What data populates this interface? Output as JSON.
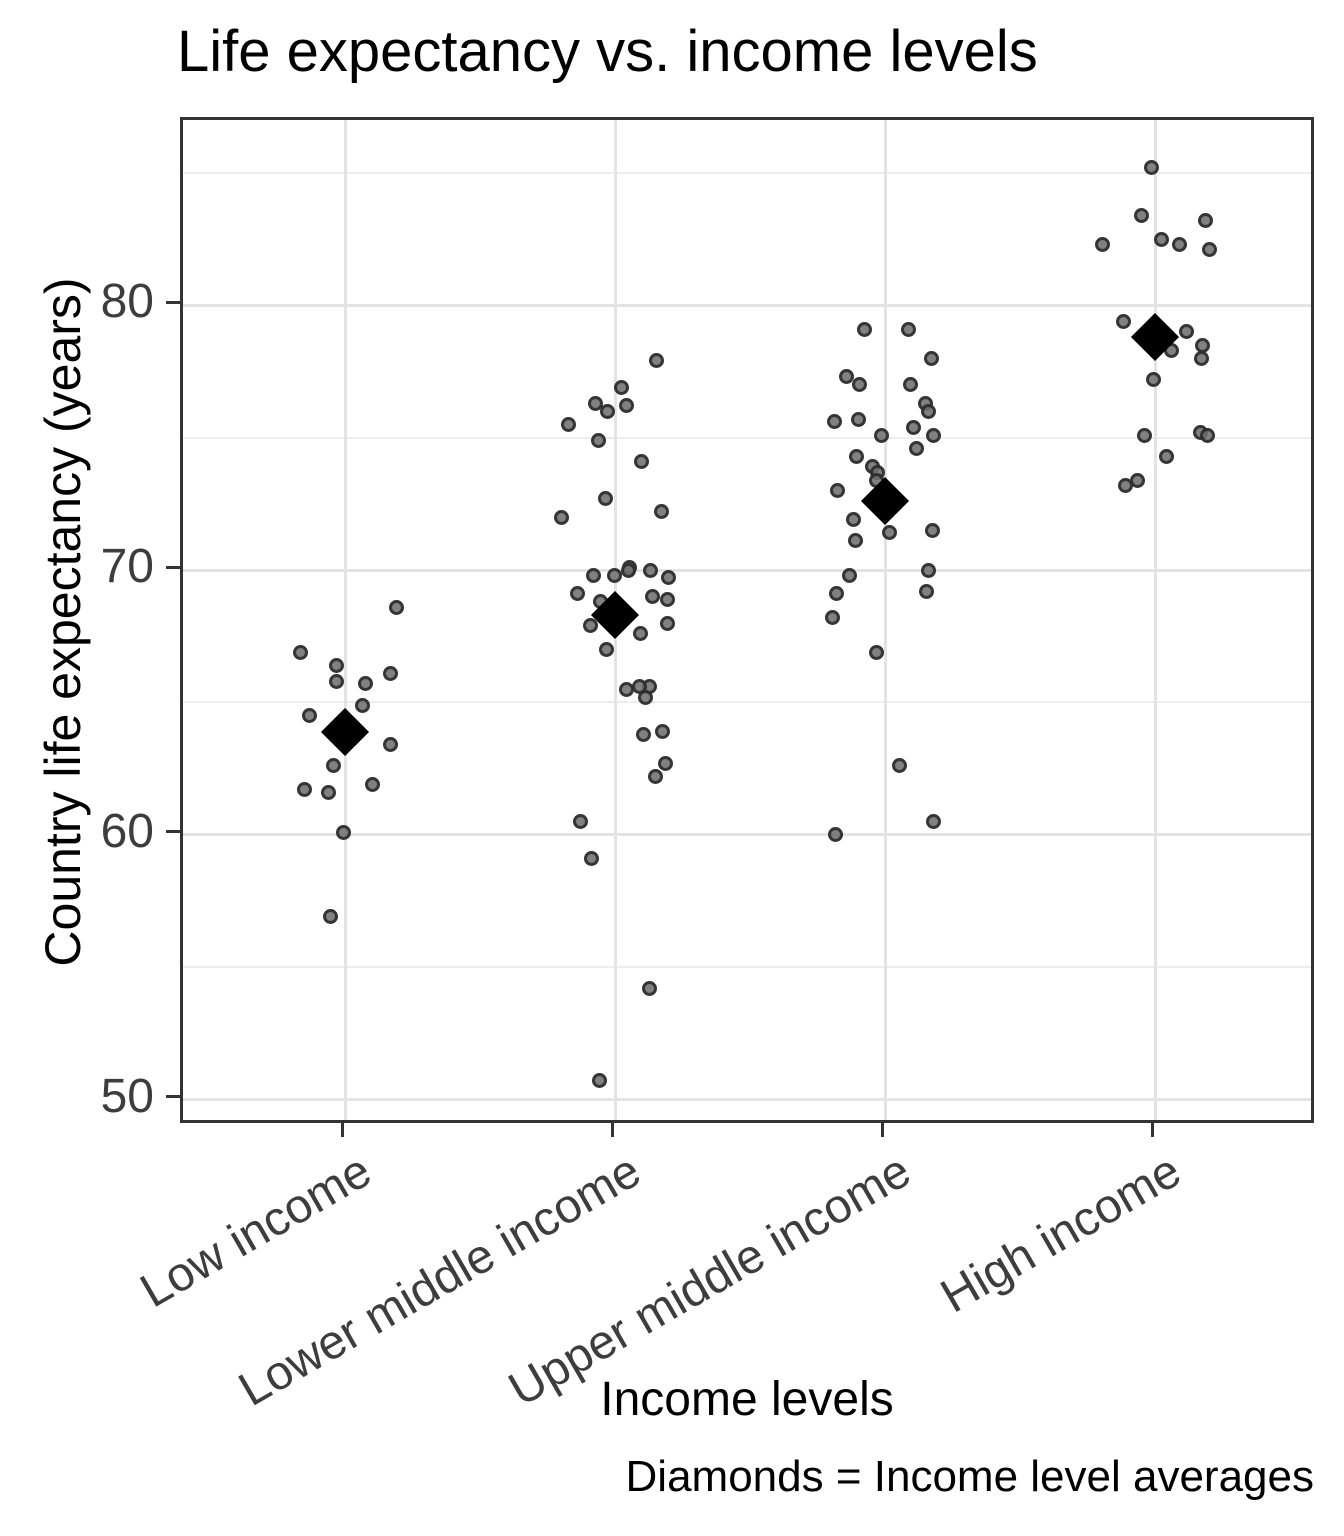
{
  "colors": {
    "background": "#ffffff",
    "text": "#000000",
    "tick_label": "#3d3d3d",
    "axis_border": "#333333",
    "grid_major": "#e3e3e3",
    "grid_minor": "#ededed",
    "point_stroke": "#191919",
    "point_fill": "#707070",
    "diamond": "#000000"
  },
  "chart_data": {
    "type": "scatter",
    "variant": "jittered strip plot with group mean diamonds",
    "title": "Life expectancy vs. income levels",
    "xlabel": "Income levels",
    "ylabel": "Country life expectancy (years)",
    "caption": "Diamonds = Income level averages",
    "legend": "none",
    "grid": true,
    "ylim": [
      49,
      87
    ],
    "y_major_ticks": [
      50,
      60,
      70,
      80
    ],
    "y_minor_ticks": [
      55,
      65,
      75,
      85
    ],
    "x_tick_angle_deg": 30,
    "categories": [
      "Low income",
      "Lower middle income",
      "Upper middle income",
      "High income"
    ],
    "means": [
      63.9,
      68.3,
      72.6,
      78.8
    ],
    "point_note": "each point = one country's life expectancy (years); j = horizontal jitter in px from category center",
    "series": [
      {
        "name": "Low income",
        "points": [
          [
            68.6,
            51
          ],
          [
            66.9,
            -45
          ],
          [
            66.4,
            -9
          ],
          [
            66.1,
            45
          ],
          [
            65.8,
            -9
          ],
          [
            65.7,
            20
          ],
          [
            64.9,
            17
          ],
          [
            64.5,
            -36
          ],
          [
            63.4,
            45
          ],
          [
            62.6,
            -12
          ],
          [
            61.9,
            27
          ],
          [
            61.7,
            -41
          ],
          [
            61.6,
            -17
          ],
          [
            60.1,
            -2
          ],
          [
            56.9,
            -15
          ]
        ]
      },
      {
        "name": "Lower middle income",
        "points": [
          [
            77.9,
            41
          ],
          [
            76.9,
            6
          ],
          [
            76.3,
            -20
          ],
          [
            76.2,
            11
          ],
          [
            76.0,
            -8
          ],
          [
            75.5,
            -47
          ],
          [
            74.9,
            -17
          ],
          [
            74.1,
            26
          ],
          [
            72.7,
            -10
          ],
          [
            72.2,
            46
          ],
          [
            72.0,
            -54
          ],
          [
            70.1,
            14
          ],
          [
            70.0,
            13
          ],
          [
            70.0,
            35
          ],
          [
            69.8,
            -22
          ],
          [
            69.8,
            -1
          ],
          [
            69.7,
            53
          ],
          [
            69.1,
            -38
          ],
          [
            69.0,
            37
          ],
          [
            68.9,
            52
          ],
          [
            68.8,
            -15
          ],
          [
            68.0,
            52
          ],
          [
            67.9,
            -25
          ],
          [
            67.6,
            25
          ],
          [
            67.0,
            -9
          ],
          [
            65.6,
            34
          ],
          [
            65.6,
            24
          ],
          [
            65.5,
            11
          ],
          [
            65.2,
            30
          ],
          [
            63.9,
            47
          ],
          [
            63.8,
            28
          ],
          [
            62.7,
            50
          ],
          [
            62.2,
            40
          ],
          [
            60.5,
            -35
          ],
          [
            59.1,
            -24
          ],
          [
            54.2,
            34
          ],
          [
            50.7,
            -16
          ]
        ]
      },
      {
        "name": "Upper middle income",
        "points": [
          [
            79.1,
            -21
          ],
          [
            79.1,
            23
          ],
          [
            78.0,
            46
          ],
          [
            77.3,
            -39
          ],
          [
            77.0,
            -26
          ],
          [
            77.0,
            25
          ],
          [
            76.3,
            40
          ],
          [
            76.0,
            43
          ],
          [
            75.7,
            -27
          ],
          [
            75.6,
            -51
          ],
          [
            75.4,
            28
          ],
          [
            75.1,
            48
          ],
          [
            75.1,
            -4
          ],
          [
            74.6,
            31
          ],
          [
            74.3,
            -29
          ],
          [
            73.9,
            -13
          ],
          [
            73.7,
            -8
          ],
          [
            73.4,
            -9
          ],
          [
            73.0,
            -48
          ],
          [
            71.9,
            -32
          ],
          [
            71.5,
            47
          ],
          [
            71.4,
            4
          ],
          [
            71.1,
            -30
          ],
          [
            70.0,
            43
          ],
          [
            69.8,
            -36
          ],
          [
            69.2,
            41
          ],
          [
            69.1,
            -49
          ],
          [
            68.2,
            -53
          ],
          [
            66.9,
            -9
          ],
          [
            62.6,
            14
          ],
          [
            60.5,
            48
          ],
          [
            60.0,
            -50
          ]
        ]
      },
      {
        "name": "High income",
        "points": [
          [
            85.2,
            -4
          ],
          [
            83.4,
            -14
          ],
          [
            83.2,
            50
          ],
          [
            82.5,
            6
          ],
          [
            82.3,
            24
          ],
          [
            82.3,
            -53
          ],
          [
            82.1,
            54
          ],
          [
            79.4,
            -32
          ],
          [
            79.0,
            31
          ],
          [
            78.5,
            47
          ],
          [
            78.3,
            16
          ],
          [
            78.0,
            46
          ],
          [
            77.2,
            -2
          ],
          [
            75.2,
            45
          ],
          [
            75.1,
            -11
          ],
          [
            75.1,
            52
          ],
          [
            74.3,
            11
          ],
          [
            73.4,
            -18
          ],
          [
            73.2,
            -30
          ]
        ]
      }
    ]
  }
}
